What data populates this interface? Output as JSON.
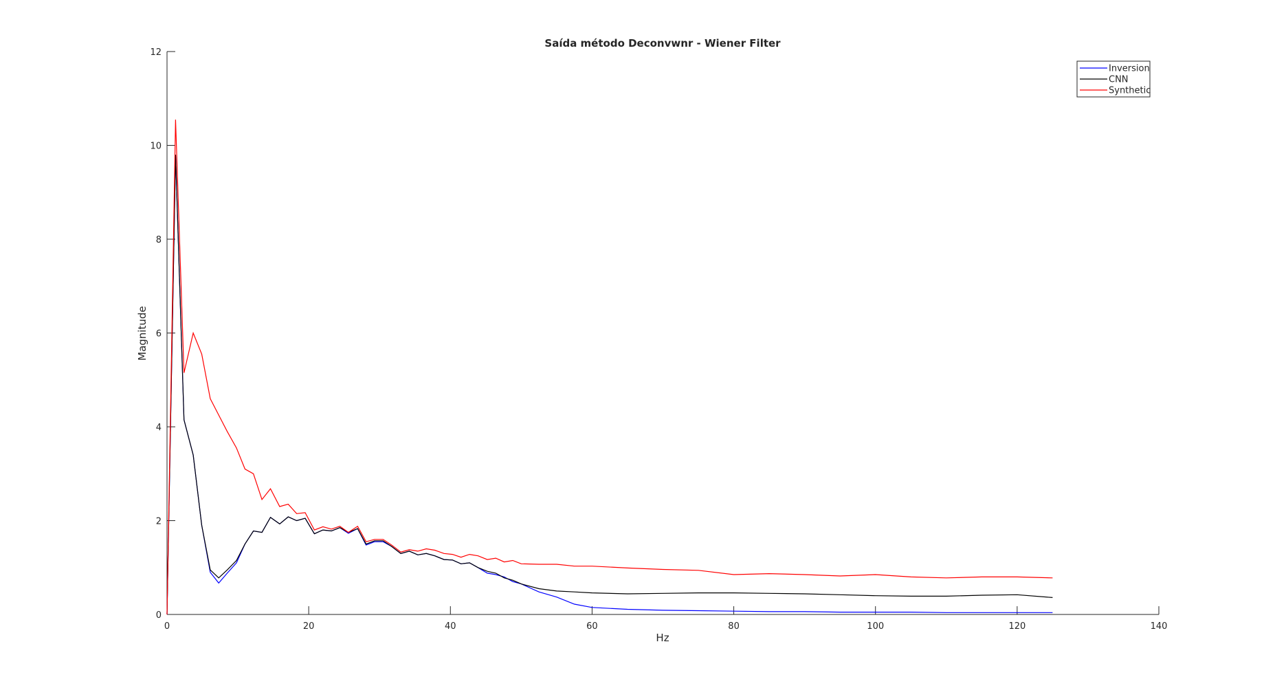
{
  "chart_data": {
    "type": "line",
    "title": "Saída método Deconvwnr - Wiener Filter",
    "x_label": "Hz",
    "y_label": "Magnitude",
    "x": [
      0,
      1.2,
      2.4,
      3.7,
      4.9,
      6.1,
      7.3,
      8.5,
      9.8,
      11.0,
      12.2,
      13.4,
      14.6,
      15.9,
      17.1,
      18.3,
      19.5,
      20.8,
      22.0,
      23.2,
      24.4,
      25.6,
      26.9,
      28.1,
      29.3,
      30.5,
      31.7,
      33.0,
      34.2,
      35.4,
      36.6,
      37.8,
      39.1,
      40.3,
      41.5,
      42.7,
      43.9,
      45.2,
      46.4,
      47.6,
      48.8,
      50.0,
      52.5,
      55.0,
      57.5,
      60.0,
      65,
      70,
      75,
      80,
      85,
      90,
      95,
      100,
      105,
      110,
      115,
      120,
      125
    ],
    "series": [
      {
        "name": "Inversion",
        "color": "#0000ff",
        "values": [
          0,
          9.8,
          4.15,
          3.4,
          1.9,
          0.9,
          0.67,
          0.88,
          1.1,
          1.5,
          1.78,
          1.75,
          2.07,
          1.93,
          2.08,
          2.0,
          2.05,
          1.72,
          1.8,
          1.78,
          1.85,
          1.73,
          1.83,
          1.48,
          1.55,
          1.55,
          1.45,
          1.3,
          1.35,
          1.27,
          1.3,
          1.25,
          1.17,
          1.16,
          1.08,
          1.1,
          1.0,
          0.88,
          0.85,
          0.8,
          0.7,
          0.65,
          0.48,
          0.37,
          0.22,
          0.15,
          0.11,
          0.09,
          0.08,
          0.07,
          0.06,
          0.06,
          0.05,
          0.05,
          0.05,
          0.04,
          0.04,
          0.04,
          0.04
        ]
      },
      {
        "name": "CNN",
        "color": "#000000",
        "values": [
          0,
          9.8,
          4.15,
          3.4,
          1.9,
          0.95,
          0.78,
          0.95,
          1.15,
          1.5,
          1.78,
          1.75,
          2.07,
          1.93,
          2.08,
          2.0,
          2.05,
          1.72,
          1.8,
          1.78,
          1.85,
          1.75,
          1.83,
          1.5,
          1.57,
          1.57,
          1.45,
          1.3,
          1.35,
          1.27,
          1.3,
          1.25,
          1.17,
          1.16,
          1.08,
          1.1,
          1.0,
          0.92,
          0.88,
          0.78,
          0.73,
          0.65,
          0.55,
          0.5,
          0.48,
          0.46,
          0.44,
          0.45,
          0.46,
          0.46,
          0.45,
          0.44,
          0.42,
          0.4,
          0.39,
          0.39,
          0.41,
          0.42,
          0.36
        ]
      },
      {
        "name": "Synthetic",
        "color": "#ff0000",
        "values": [
          0,
          10.55,
          5.15,
          6.0,
          5.55,
          4.6,
          4.25,
          3.9,
          3.55,
          3.1,
          3.0,
          2.45,
          2.68,
          2.3,
          2.35,
          2.15,
          2.17,
          1.8,
          1.87,
          1.82,
          1.88,
          1.75,
          1.88,
          1.55,
          1.6,
          1.6,
          1.48,
          1.33,
          1.38,
          1.35,
          1.4,
          1.37,
          1.3,
          1.28,
          1.22,
          1.28,
          1.25,
          1.17,
          1.2,
          1.12,
          1.15,
          1.08,
          1.07,
          1.07,
          1.03,
          1.03,
          0.99,
          0.96,
          0.94,
          0.85,
          0.87,
          0.85,
          0.82,
          0.85,
          0.8,
          0.78,
          0.8,
          0.8,
          0.78
        ]
      }
    ],
    "xlim": [
      0,
      140
    ],
    "xticks": [
      0,
      20,
      40,
      60,
      80,
      100,
      120,
      140
    ],
    "ylim": [
      0,
      12
    ],
    "yticks": [
      0,
      2,
      4,
      6,
      8,
      10,
      12
    ],
    "grid": false,
    "legend": "top-right"
  }
}
